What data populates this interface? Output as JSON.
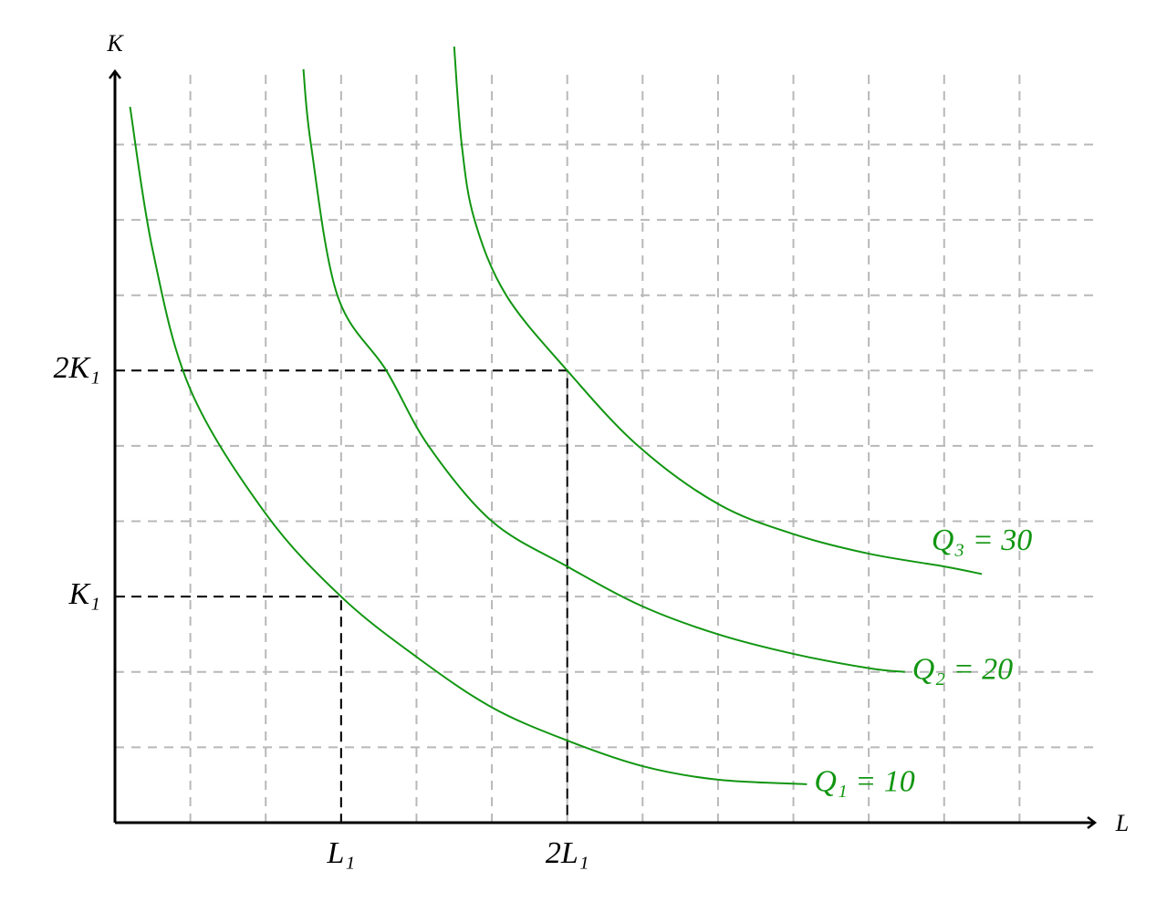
{
  "chart_data": {
    "type": "line",
    "x_label": "L",
    "y_label": "K",
    "xlim": [
      0,
      13
    ],
    "ylim": [
      0,
      10
    ],
    "xticks": [
      {
        "value": 3,
        "label": "L₁"
      },
      {
        "value": 6,
        "label": "2L₁"
      }
    ],
    "yticks": [
      {
        "value": 3,
        "label": "K₁"
      },
      {
        "value": 6,
        "label": "2K₁"
      }
    ],
    "xgrid": [
      1,
      2,
      3,
      4,
      5,
      6,
      7,
      8,
      9,
      10,
      11,
      12
    ],
    "ygrid": [
      1,
      2,
      3,
      4,
      5,
      6,
      7,
      8,
      9
    ],
    "grid": true,
    "series": [
      {
        "name": "Q₁ = 10",
        "color": "#129612",
        "x": [
          0.2,
          0.5,
          1,
          2,
          3,
          4,
          5,
          6,
          7,
          8,
          9.18
        ],
        "values": [
          9.5,
          7.6,
          5.75,
          4.1,
          3,
          2.2,
          1.53,
          1.09,
          0.75,
          0.57,
          0.51
        ]
      },
      {
        "name": "Q₂ = 20",
        "color": "#129612",
        "x": [
          2.5,
          2.6,
          2.95,
          3.6,
          4.16,
          5,
          6,
          7,
          8,
          9,
          10,
          10.48
        ],
        "values": [
          10,
          9,
          7,
          6,
          5,
          4,
          3.4,
          2.87,
          2.5,
          2.24,
          2.05,
          2.0
        ]
      },
      {
        "name": "Q₃ = 30",
        "color": "#129612",
        "x": [
          4.5,
          4.6,
          4.77,
          5.19,
          6,
          6.94,
          8,
          9,
          10,
          11,
          11.5
        ],
        "values": [
          10.3,
          9,
          8,
          7,
          6,
          5,
          4.23,
          3.83,
          3.57,
          3.4,
          3.3
        ]
      }
    ]
  }
}
